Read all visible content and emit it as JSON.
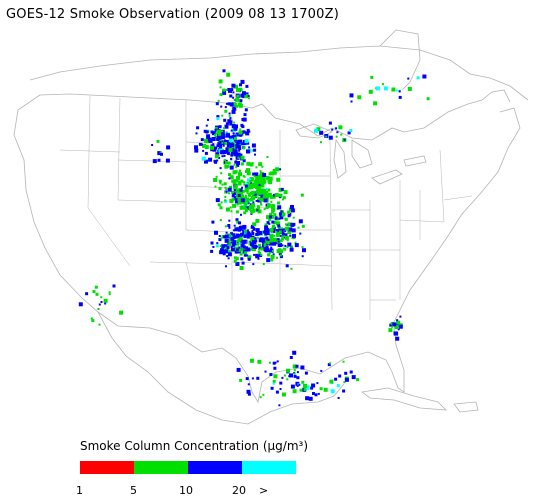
{
  "title": "GOES-12 Smoke Observation (2009 08 13  1700Z)",
  "legend": {
    "title": "Smoke Column Concentration (µg/m³)",
    "bins": [
      {
        "color": "#ff0000",
        "from": 1,
        "to": 5
      },
      {
        "color": "#00e000",
        "from": 5,
        "to": 10
      },
      {
        "color": "#0000ff",
        "from": 10,
        "to": 20
      },
      {
        "color": "#00ffff",
        "from": 20,
        "to": null
      }
    ],
    "ticks": [
      "1",
      "5",
      "10",
      "20",
      ">"
    ]
  },
  "map": {
    "region": "continental-united-states",
    "projection": "lambert-conformal",
    "boundaries": [
      "coastlines",
      "state-borders",
      "country-borders"
    ],
    "boundary_color": "#b4b4b4"
  }
}
